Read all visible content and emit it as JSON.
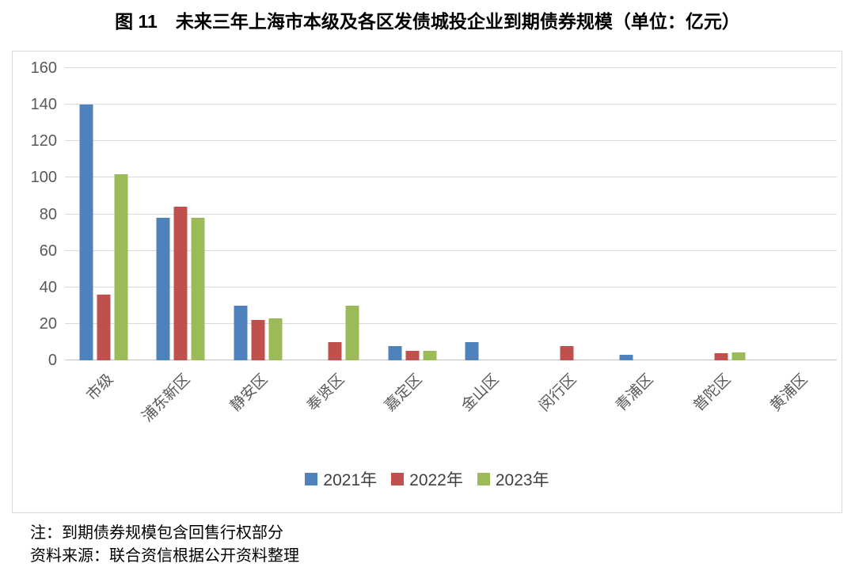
{
  "title": "图 11　未来三年上海市本级及各区发债城投企业到期债券规模（单位：亿元）",
  "notes": [
    "注：到期债券规模包含回售行权部分",
    "资料来源：联合资信根据公开资料整理"
  ],
  "chart_data": {
    "type": "bar",
    "title": "图 11　未来三年上海市本级及各区发债城投企业到期债券规模（单位：亿元）",
    "categories": [
      "市级",
      "浦东新区",
      "静安区",
      "奉贤区",
      "嘉定区",
      "金山区",
      "闵行区",
      "青浦区",
      "普陀区",
      "黄浦区"
    ],
    "series": [
      {
        "name": "2021年",
        "color": "#4F81BD",
        "values": [
          140,
          78,
          30,
          0,
          8,
          10,
          0,
          3,
          0,
          0
        ]
      },
      {
        "name": "2022年",
        "color": "#C0504D",
        "values": [
          36,
          84,
          22,
          10,
          5,
          0,
          8,
          0,
          4,
          0
        ]
      },
      {
        "name": "2023年",
        "color": "#9BBB59",
        "values": [
          102,
          78,
          23,
          30,
          5,
          0,
          0,
          0,
          4.5,
          0
        ]
      }
    ],
    "ylabel": "",
    "xlabel": "",
    "ylim": [
      0,
      160
    ],
    "yticks": [
      0,
      20,
      40,
      60,
      80,
      100,
      120,
      140,
      160
    ],
    "grid": true,
    "legend_position": "bottom"
  }
}
